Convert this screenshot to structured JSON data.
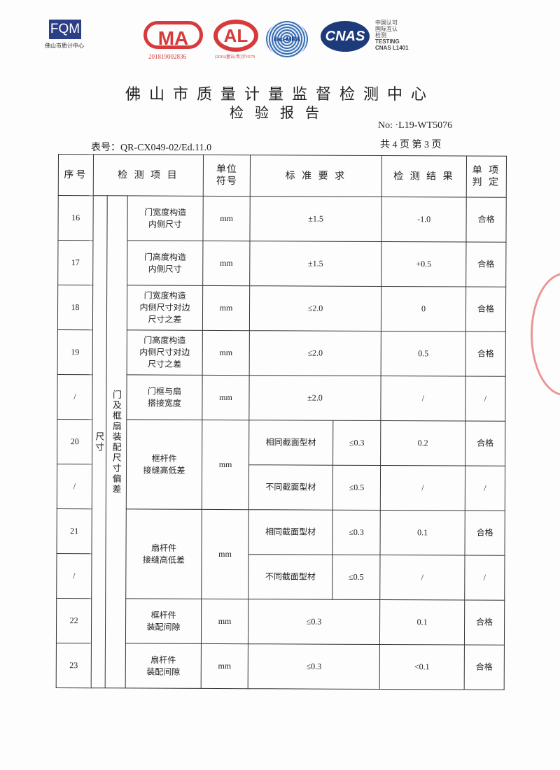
{
  "logos": {
    "fqm": "FQM",
    "fqm_sub": "佛山市质计中心",
    "cma": "MA",
    "cma_number": "201819002836",
    "cal": "AL",
    "cal_number": "(2016)量认(粤)字H179",
    "ilac": "ilac-MRA",
    "cnas": "CNAS",
    "cnas_text": [
      "中国认可",
      "国际互认",
      "检测",
      "TESTING",
      "CNAS L1401"
    ]
  },
  "header": {
    "title": "佛山市质量计量监督检测中心",
    "subtitle": "检验报告",
    "report_no": "No: ·L19-WT5076",
    "form_no": "表号：QR-CX049-02/Ed.11.0",
    "pages": "共 4 页  第 3 页"
  },
  "table": {
    "headers": {
      "seq": "序号",
      "item": "检 测 项 目",
      "unit": "单位\n符号",
      "standard": "标 准 要 求",
      "result": "检 测 结 果",
      "verdict": "单 项\n判 定"
    },
    "group1": "尺寸",
    "group2": "门及框扇装配尺寸偏差",
    "rows": [
      {
        "seq": "16",
        "item": "门宽度构造\n内侧尺寸",
        "unit": "mm",
        "standard": "±1.5",
        "result": "-1.0",
        "verdict": "合格"
      },
      {
        "seq": "17",
        "item": "门高度构造\n内侧尺寸",
        "unit": "mm",
        "standard": "±1.5",
        "result": "+0.5",
        "verdict": "合格"
      },
      {
        "seq": "18",
        "item": "门宽度构造\n内侧尺寸对边\n尺寸之差",
        "unit": "mm",
        "standard": "≤2.0",
        "result": "0",
        "verdict": "合格"
      },
      {
        "seq": "19",
        "item": "门高度构造\n内侧尺寸对边\n尺寸之差",
        "unit": "mm",
        "standard": "≤2.0",
        "result": "0.5",
        "verdict": "合格"
      },
      {
        "seq": "/",
        "item": "门框与扇\n搭接宽度",
        "unit": "mm",
        "standard": "±2.0",
        "result": "/",
        "verdict": "/"
      },
      {
        "seq": "20",
        "item": "框杆件\n接缝高低差",
        "unit": "mm",
        "sub": "相同截面型材",
        "standard": "≤0.3",
        "result": "0.2",
        "verdict": "合格"
      },
      {
        "seq": "/",
        "sub": "不同截面型材",
        "standard": "≤0.5",
        "result": "/",
        "verdict": "/"
      },
      {
        "seq": "21",
        "item": "扇杆件\n接缝高低差",
        "unit": "mm",
        "sub": "相同截面型材",
        "standard": "≤0.3",
        "result": "0.1",
        "verdict": "合格"
      },
      {
        "seq": "/",
        "sub": "不同截面型材",
        "standard": "≤0.5",
        "result": "/",
        "verdict": "/"
      },
      {
        "seq": "22",
        "item": "框杆件\n装配间隙",
        "unit": "mm",
        "standard": "≤0.3",
        "result": "0.1",
        "verdict": "合格"
      },
      {
        "seq": "23",
        "item": "扇杆件\n装配间隙",
        "unit": "mm",
        "standard": "≤0.3",
        "result": "<0.1",
        "verdict": "合格"
      }
    ]
  }
}
